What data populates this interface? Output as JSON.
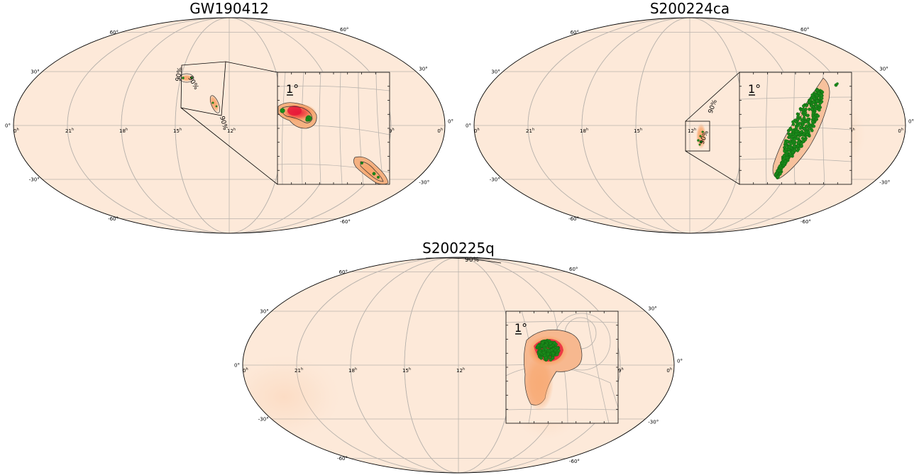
{
  "colors": {
    "sky_background": "#fde9d9",
    "probability_low": "#f9a66c",
    "probability_high": "#e8193a",
    "galaxies": "#1a8a1a",
    "grid": "#b9b3ad",
    "contour": "#333333"
  },
  "icons": [
    "mollweide-sky-map",
    "zoom-inset"
  ],
  "panels": [
    {
      "title": "GW190412",
      "ra_labels": [
        "0",
        "21",
        "18",
        "15",
        "12",
        "9",
        "0"
      ],
      "ra_unit": "h",
      "dec_labels": [
        "60°",
        "30°",
        "0°",
        "-30°",
        "-60°"
      ],
      "contour_labels": [
        "90%",
        "90%",
        "90%"
      ],
      "inset_scale": "1°"
    },
    {
      "title": "S200224ca",
      "ra_labels": [
        "0",
        "21",
        "18",
        "15",
        "12",
        "9",
        "0"
      ],
      "ra_unit": "h",
      "dec_labels": [
        "60°",
        "30°",
        "0°",
        "-30°",
        "-60°"
      ],
      "contour_labels": [
        "90%",
        "90%"
      ],
      "inset_scale": "1°"
    },
    {
      "title": "S200225q",
      "ra_labels": [
        "0",
        "21",
        "18",
        "15",
        "12",
        "9",
        "0"
      ],
      "ra_unit": "h",
      "dec_labels": [
        "60°",
        "30°",
        "0°",
        "-30°",
        "-60°"
      ],
      "contour_labels": [
        "90%"
      ],
      "inset_scale": "1°"
    }
  ]
}
